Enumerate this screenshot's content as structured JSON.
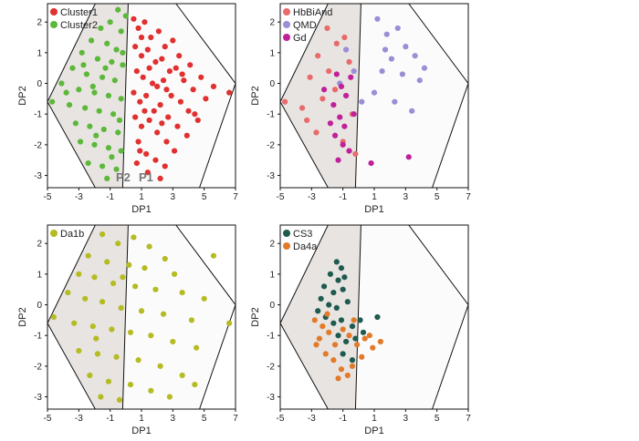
{
  "chart_data": [
    {
      "type": "scatter",
      "title": "",
      "xlabel": "DP1",
      "ylabel": "DP2",
      "xlim": [
        -5,
        7
      ],
      "ylim": [
        -3.4,
        2.6
      ],
      "xticks": [
        -5,
        -3,
        -1,
        1,
        3,
        5,
        7
      ],
      "yticks": [
        -3,
        -2,
        -1,
        0,
        1,
        2
      ],
      "legend_position": "top-left",
      "annotations": [
        "P2",
        "P1"
      ],
      "series": [
        {
          "name": "Cluster1",
          "color": "#e03030",
          "points": [
            [
              0.5,
              2.1
            ],
            [
              0.8,
              1.8
            ],
            [
              1.2,
              2.0
            ],
            [
              1.6,
              1.5
            ],
            [
              2.1,
              1.7
            ],
            [
              2.5,
              1.2
            ],
            [
              3.0,
              1.4
            ],
            [
              3.4,
              0.9
            ],
            [
              4.1,
              0.6
            ],
            [
              4.8,
              0.2
            ],
            [
              5.6,
              -0.1
            ],
            [
              6.6,
              -0.3
            ],
            [
              0.6,
              1.2
            ],
            [
              1.0,
              0.9
            ],
            [
              1.4,
              1.1
            ],
            [
              1.9,
              0.7
            ],
            [
              2.3,
              0.8
            ],
            [
              2.8,
              0.4
            ],
            [
              3.2,
              0.5
            ],
            [
              3.7,
              0.1
            ],
            [
              4.3,
              -0.2
            ],
            [
              5.1,
              -0.5
            ],
            [
              0.7,
              0.4
            ],
            [
              1.1,
              0.2
            ],
            [
              1.5,
              0.5
            ],
            [
              2.0,
              -0.1
            ],
            [
              2.4,
              0.1
            ],
            [
              2.9,
              -0.4
            ],
            [
              3.5,
              -0.6
            ],
            [
              4.0,
              -0.9
            ],
            [
              4.6,
              -1.2
            ],
            [
              0.5,
              -0.3
            ],
            [
              0.9,
              -0.6
            ],
            [
              1.3,
              -0.4
            ],
            [
              1.8,
              -0.9
            ],
            [
              2.2,
              -0.7
            ],
            [
              2.7,
              -1.1
            ],
            [
              3.3,
              -1.4
            ],
            [
              3.9,
              -1.7
            ],
            [
              0.6,
              -1.1
            ],
            [
              1.0,
              -1.4
            ],
            [
              1.5,
              -1.2
            ],
            [
              2.0,
              -1.6
            ],
            [
              2.6,
              -1.9
            ],
            [
              3.1,
              -2.2
            ],
            [
              0.8,
              -1.9
            ],
            [
              1.3,
              -2.3
            ],
            [
              1.9,
              -2.5
            ],
            [
              2.5,
              -2.7
            ],
            [
              0.7,
              -2.6
            ],
            [
              1.4,
              -2.9
            ],
            [
              2.2,
              -3.1
            ],
            [
              1.0,
              1.5
            ],
            [
              1.7,
              0.0
            ],
            [
              2.6,
              -0.2
            ],
            [
              3.6,
              0.3
            ],
            [
              4.4,
              -1.0
            ],
            [
              1.2,
              -0.9
            ],
            [
              2.3,
              -1.3
            ],
            [
              0.9,
              -2.2
            ]
          ]
        },
        {
          "name": "Cluster2",
          "color": "#5cb83a",
          "points": [
            [
              -0.5,
              2.4
            ],
            [
              0.0,
              2.2
            ],
            [
              -1.0,
              2.0
            ],
            [
              -1.6,
              1.8
            ],
            [
              -0.3,
              1.7
            ],
            [
              -2.2,
              1.4
            ],
            [
              -1.2,
              1.3
            ],
            [
              -0.6,
              1.1
            ],
            [
              -2.8,
              1.0
            ],
            [
              -1.8,
              0.8
            ],
            [
              -0.9,
              0.7
            ],
            [
              -0.2,
              0.6
            ],
            [
              -3.4,
              0.5
            ],
            [
              -2.5,
              0.3
            ],
            [
              -1.5,
              0.2
            ],
            [
              -0.7,
              0.1
            ],
            [
              -4.1,
              0.0
            ],
            [
              -3.0,
              -0.2
            ],
            [
              -2.0,
              -0.3
            ],
            [
              -1.1,
              -0.4
            ],
            [
              -0.3,
              -0.5
            ],
            [
              -4.7,
              -0.6
            ],
            [
              -3.6,
              -0.7
            ],
            [
              -2.6,
              -0.8
            ],
            [
              -1.7,
              -0.9
            ],
            [
              -0.8,
              -1.0
            ],
            [
              -3.2,
              -1.3
            ],
            [
              -2.3,
              -1.4
            ],
            [
              -1.4,
              -1.5
            ],
            [
              -0.5,
              -1.6
            ],
            [
              -2.9,
              -1.9
            ],
            [
              -2.0,
              -2.0
            ],
            [
              -1.1,
              -2.1
            ],
            [
              -0.3,
              -2.2
            ],
            [
              -2.4,
              -2.6
            ],
            [
              -1.5,
              -2.7
            ],
            [
              -0.6,
              -2.8
            ],
            [
              -1.2,
              -3.1
            ],
            [
              -0.2,
              1.0
            ],
            [
              -1.3,
              0.5
            ],
            [
              -2.1,
              -0.1
            ],
            [
              -0.4,
              -1.2
            ],
            [
              -1.9,
              -1.7
            ],
            [
              -0.9,
              -2.4
            ],
            [
              -2.7,
              0.6
            ],
            [
              -3.8,
              -0.3
            ]
          ]
        }
      ]
    },
    {
      "type": "scatter",
      "title": "",
      "xlabel": "DP1",
      "ylabel": "DP2",
      "xlim": [
        -5,
        7
      ],
      "ylim": [
        -3.4,
        2.6
      ],
      "xticks": [
        -5,
        -3,
        -1,
        1,
        3,
        5,
        7
      ],
      "yticks": [
        -3,
        -2,
        -1,
        0,
        1,
        2
      ],
      "legend_position": "top-left",
      "annotations": [],
      "series": [
        {
          "name": "HbBiAnd",
          "color": "#e86a6a",
          "points": [
            [
              -2.0,
              1.8
            ],
            [
              -1.4,
              1.3
            ],
            [
              -0.9,
              1.5
            ],
            [
              -2.6,
              0.9
            ],
            [
              -1.9,
              0.4
            ],
            [
              -3.1,
              0.2
            ],
            [
              -0.6,
              0.7
            ],
            [
              -4.7,
              -0.6
            ],
            [
              -3.6,
              -0.8
            ],
            [
              -2.3,
              -0.5
            ],
            [
              -1.5,
              -0.2
            ],
            [
              -0.4,
              -1.0
            ],
            [
              -2.7,
              -1.6
            ],
            [
              -1.0,
              -1.9
            ],
            [
              -0.2,
              -2.3
            ],
            [
              -3.3,
              -1.2
            ]
          ]
        },
        {
          "name": "QMD",
          "color": "#9a8ed6",
          "points": [
            [
              1.2,
              2.1
            ],
            [
              1.8,
              1.6
            ],
            [
              2.5,
              1.8
            ],
            [
              3.0,
              1.2
            ],
            [
              3.6,
              0.9
            ],
            [
              2.1,
              0.8
            ],
            [
              1.5,
              0.4
            ],
            [
              2.8,
              0.3
            ],
            [
              3.9,
              0.1
            ],
            [
              1.0,
              -0.3
            ],
            [
              2.3,
              -0.6
            ],
            [
              3.4,
              -0.9
            ],
            [
              -0.8,
              1.1
            ],
            [
              -0.3,
              0.4
            ],
            [
              -1.2,
              0.0
            ],
            [
              0.2,
              -0.6
            ],
            [
              4.2,
              0.5
            ],
            [
              1.7,
              1.1
            ]
          ]
        },
        {
          "name": "Gd",
          "color": "#c0209a",
          "points": [
            [
              -1.4,
              0.3
            ],
            [
              -1.1,
              -0.1
            ],
            [
              -0.8,
              -0.4
            ],
            [
              -1.6,
              -0.7
            ],
            [
              -1.2,
              -1.1
            ],
            [
              -0.9,
              -1.4
            ],
            [
              -1.5,
              -1.7
            ],
            [
              -1.0,
              -2.0
            ],
            [
              -0.6,
              -2.2
            ],
            [
              -1.8,
              -1.3
            ],
            [
              -2.2,
              -0.2
            ],
            [
              -0.5,
              0.2
            ],
            [
              -1.3,
              -2.5
            ],
            [
              0.8,
              -2.6
            ],
            [
              3.2,
              -2.4
            ],
            [
              -0.3,
              -1.0
            ]
          ]
        }
      ]
    },
    {
      "type": "scatter",
      "title": "",
      "xlabel": "DP1",
      "ylabel": "DP2",
      "xlim": [
        -5,
        7
      ],
      "ylim": [
        -3.4,
        2.6
      ],
      "xticks": [
        -5,
        -3,
        -1,
        1,
        3,
        5,
        7
      ],
      "yticks": [
        -3,
        -2,
        -1,
        0,
        1,
        2
      ],
      "legend_position": "top-left",
      "annotations": [],
      "series": [
        {
          "name": "Da1b",
          "color": "#b5bb22",
          "points": [
            [
              -1.5,
              2.3
            ],
            [
              -0.5,
              2.0
            ],
            [
              0.5,
              2.2
            ],
            [
              1.5,
              1.9
            ],
            [
              2.5,
              1.5
            ],
            [
              -2.4,
              1.6
            ],
            [
              -1.2,
              1.4
            ],
            [
              0.2,
              1.3
            ],
            [
              1.2,
              1.2
            ],
            [
              3.1,
              1.0
            ],
            [
              -3.0,
              1.0
            ],
            [
              -2.0,
              0.9
            ],
            [
              -0.8,
              0.7
            ],
            [
              0.6,
              0.6
            ],
            [
              1.9,
              0.5
            ],
            [
              3.6,
              0.4
            ],
            [
              5.0,
              0.2
            ],
            [
              -3.7,
              0.4
            ],
            [
              -2.6,
              0.2
            ],
            [
              -1.5,
              0.1
            ],
            [
              -0.3,
              -0.1
            ],
            [
              1.0,
              -0.2
            ],
            [
              2.4,
              -0.3
            ],
            [
              4.2,
              -0.5
            ],
            [
              6.6,
              -0.6
            ],
            [
              -4.6,
              -0.4
            ],
            [
              -3.3,
              -0.6
            ],
            [
              -2.1,
              -0.7
            ],
            [
              -0.9,
              -0.8
            ],
            [
              0.3,
              -0.9
            ],
            [
              1.6,
              -1.0
            ],
            [
              3.0,
              -1.2
            ],
            [
              4.5,
              -1.4
            ],
            [
              -3.0,
              -1.5
            ],
            [
              -1.8,
              -1.6
            ],
            [
              -0.6,
              -1.7
            ],
            [
              0.8,
              -1.8
            ],
            [
              2.2,
              -2.0
            ],
            [
              3.6,
              -2.3
            ],
            [
              -2.3,
              -2.3
            ],
            [
              -1.1,
              -2.5
            ],
            [
              0.3,
              -2.6
            ],
            [
              1.6,
              -2.8
            ],
            [
              2.8,
              -3.0
            ],
            [
              -1.6,
              -3.0
            ],
            [
              -0.4,
              -3.1
            ],
            [
              5.6,
              1.6
            ],
            [
              4.4,
              -2.6
            ],
            [
              -0.2,
              0.9
            ],
            [
              -1.9,
              -1.1
            ]
          ]
        }
      ]
    },
    {
      "type": "scatter",
      "title": "",
      "xlabel": "DP1",
      "ylabel": "DP2",
      "xlim": [
        -5,
        7
      ],
      "ylim": [
        -3.4,
        2.6
      ],
      "xticks": [
        -5,
        -3,
        -1,
        1,
        3,
        5,
        7
      ],
      "yticks": [
        -3,
        -2,
        -1,
        0,
        1,
        2
      ],
      "legend_position": "top-left",
      "annotations": [],
      "series": [
        {
          "name": "CS3",
          "color": "#1f5a4e",
          "points": [
            [
              -1.4,
              1.4
            ],
            [
              -1.1,
              1.2
            ],
            [
              -1.8,
              1.0
            ],
            [
              -1.3,
              0.8
            ],
            [
              -0.9,
              0.9
            ],
            [
              -2.2,
              0.6
            ],
            [
              -1.6,
              0.4
            ],
            [
              -1.0,
              0.5
            ],
            [
              -2.4,
              0.2
            ],
            [
              -1.9,
              0.0
            ],
            [
              -1.4,
              -0.1
            ],
            [
              -0.7,
              0.1
            ],
            [
              -2.1,
              -0.4
            ],
            [
              -1.6,
              -0.6
            ],
            [
              -1.1,
              -0.5
            ],
            [
              -0.4,
              -0.7
            ],
            [
              0.1,
              -0.5
            ],
            [
              -1.3,
              -1.0
            ],
            [
              -0.8,
              -1.2
            ],
            [
              -0.2,
              -1.1
            ],
            [
              0.3,
              -0.9
            ],
            [
              -1.0,
              -1.6
            ],
            [
              -0.4,
              -1.8
            ],
            [
              1.2,
              -0.4
            ],
            [
              -2.6,
              -0.2
            ]
          ]
        },
        {
          "name": "Da4a",
          "color": "#e27a2a",
          "points": [
            [
              -2.8,
              -0.5
            ],
            [
              -2.3,
              -0.7
            ],
            [
              -1.9,
              -0.9
            ],
            [
              -2.5,
              -1.1
            ],
            [
              -1.5,
              -1.3
            ],
            [
              -1.0,
              -0.8
            ],
            [
              -0.6,
              -1.0
            ],
            [
              -0.1,
              -1.3
            ],
            [
              0.4,
              -1.1
            ],
            [
              0.9,
              -1.4
            ],
            [
              -2.1,
              -1.6
            ],
            [
              -1.6,
              -1.8
            ],
            [
              -1.1,
              -2.1
            ],
            [
              -0.4,
              -2.0
            ],
            [
              0.2,
              -1.7
            ],
            [
              0.7,
              -1.0
            ],
            [
              -2.7,
              -1.3
            ],
            [
              -1.3,
              -2.4
            ],
            [
              -0.7,
              -2.3
            ],
            [
              1.4,
              -1.2
            ],
            [
              -2.0,
              -0.3
            ],
            [
              -0.3,
              -0.5
            ]
          ]
        }
      ]
    }
  ]
}
